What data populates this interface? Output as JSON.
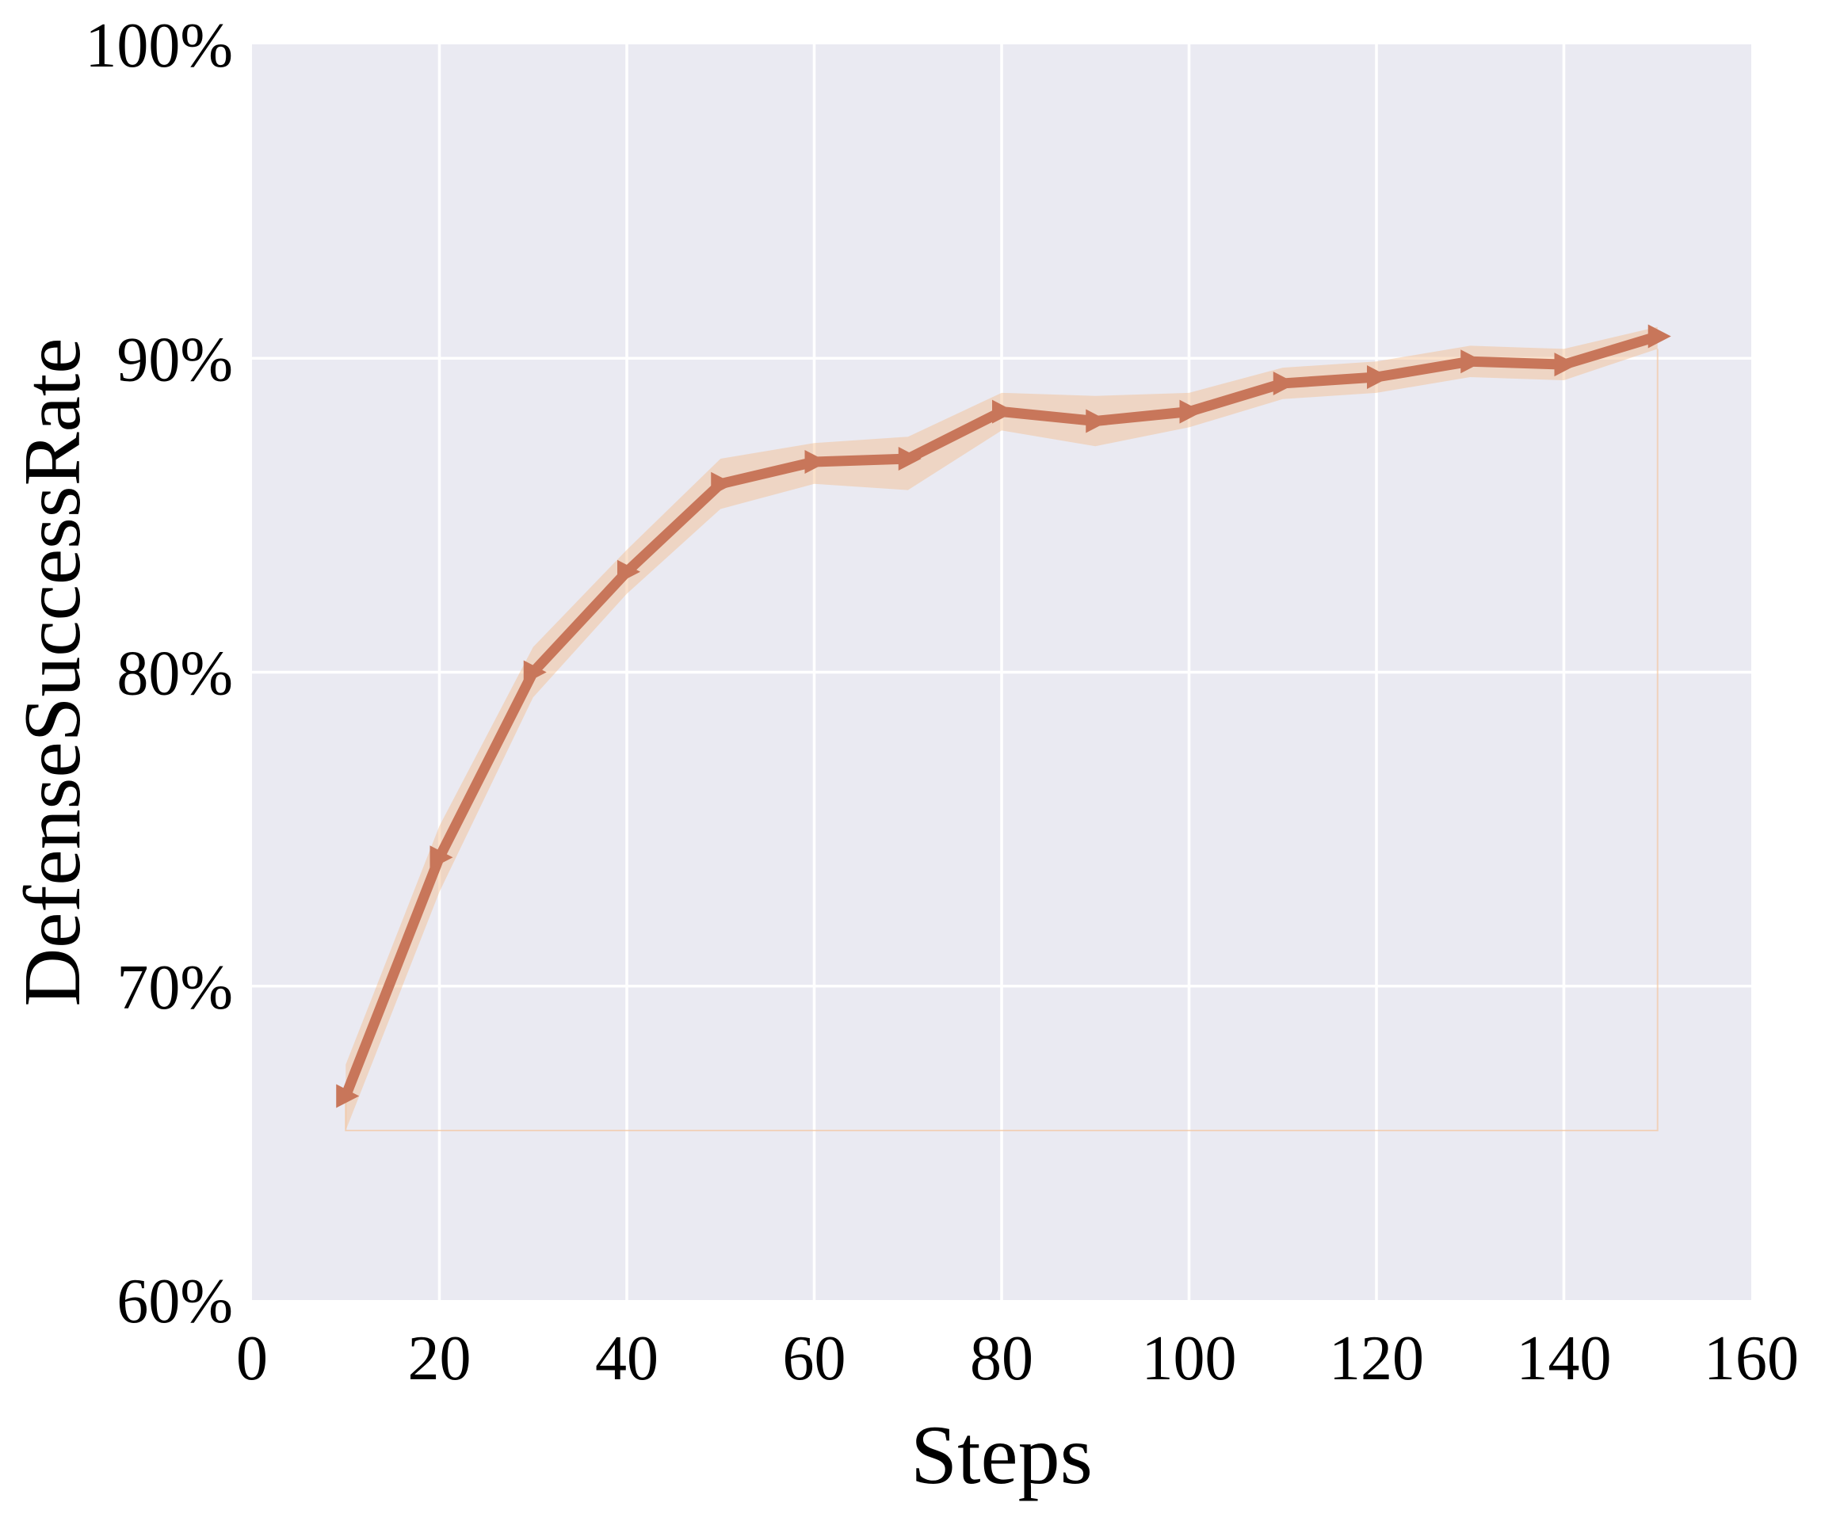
{
  "chart_data": {
    "type": "line",
    "title": "",
    "xlabel": "Steps",
    "ylabel": "DefenseSuccessRate",
    "x": [
      10,
      20,
      30,
      40,
      50,
      60,
      70,
      80,
      90,
      100,
      110,
      120,
      130,
      140,
      150
    ],
    "series": [
      {
        "name": "DefenseSuccessRate",
        "values": [
          66.5,
          74.1,
          80.0,
          83.2,
          86.0,
          86.7,
          86.8,
          88.3,
          88.0,
          88.3,
          89.2,
          89.4,
          89.9,
          89.8,
          90.7
        ]
      }
    ],
    "band": {
      "lower": [
        65.4,
        73.0,
        79.2,
        82.5,
        85.2,
        86.0,
        85.8,
        87.7,
        87.2,
        87.8,
        88.7,
        88.9,
        89.4,
        89.3,
        90.3
      ],
      "upper": [
        67.5,
        75.1,
        80.8,
        83.9,
        86.8,
        87.3,
        87.5,
        88.9,
        88.8,
        88.9,
        89.7,
        89.9,
        90.4,
        90.3,
        91.0
      ]
    },
    "xlim": [
      0,
      160
    ],
    "ylim": [
      60,
      100
    ],
    "xticks": [
      0,
      20,
      40,
      60,
      80,
      100,
      120,
      140,
      160
    ],
    "xtick_labels": [
      "0",
      "20",
      "40",
      "60",
      "80",
      "100",
      "120",
      "140",
      "160"
    ],
    "yticks": [
      60,
      70,
      80,
      90,
      100
    ],
    "ytick_labels": [
      "60%",
      "70%",
      "80%",
      "90%",
      "100%"
    ],
    "grid": true,
    "legend": false,
    "marker": "triangle-right",
    "colors": {
      "line": "#c8765a",
      "band": "#f5bc8c",
      "band_opacity": 0.45,
      "band_edge": "#f2c59e",
      "plot_bg": "#eaeaf2",
      "grid": "#ffffff",
      "fig_bg": "#ffffff",
      "text": "#000000"
    }
  }
}
